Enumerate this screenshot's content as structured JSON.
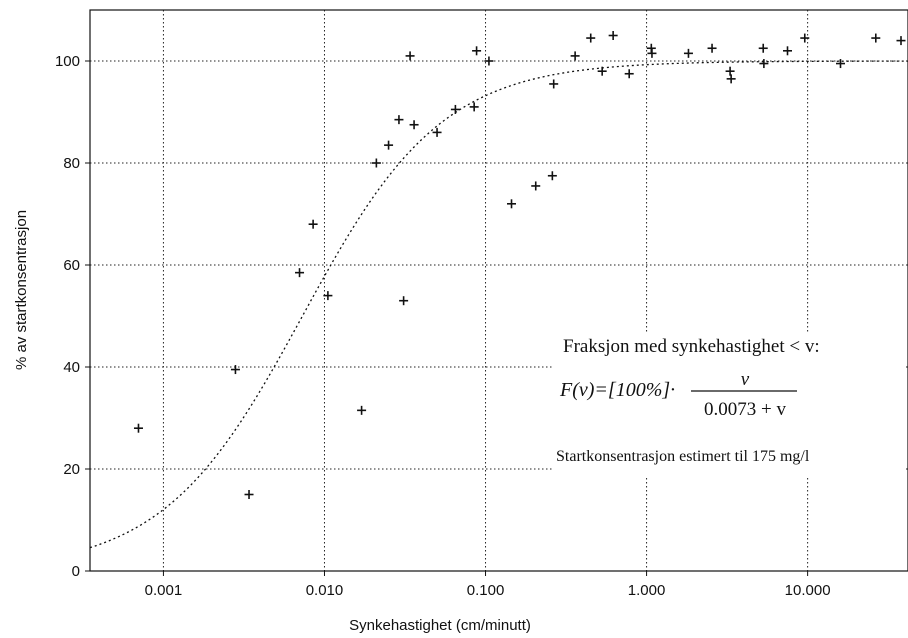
{
  "chart_data": {
    "type": "scatter",
    "xlabel": "Synkehastighet (cm/minutt)",
    "ylabel": "% av startkonsentrasjon",
    "x_scale": "log",
    "xlim": [
      0.00035,
      42
    ],
    "ylim": [
      0,
      110
    ],
    "x_ticks": [
      0.001,
      0.01,
      0.1,
      1,
      10
    ],
    "x_tick_labels": [
      "0.001",
      "0.010",
      "0.100",
      "1.000",
      "10.000"
    ],
    "y_ticks": [
      0,
      20,
      40,
      60,
      80,
      100
    ],
    "y_tick_labels": [
      "0",
      "20",
      "40",
      "60",
      "80",
      "100"
    ],
    "grid": true,
    "series": [
      {
        "marker": "plus",
        "points": [
          [
            0.0007,
            28
          ],
          [
            0.0028,
            39.5
          ],
          [
            0.0034,
            15
          ],
          [
            0.007,
            58.5
          ],
          [
            0.0085,
            68
          ],
          [
            0.0105,
            54
          ],
          [
            0.017,
            31.5
          ],
          [
            0.021,
            80
          ],
          [
            0.025,
            83.5
          ],
          [
            0.029,
            88.5
          ],
          [
            0.031,
            53
          ],
          [
            0.034,
            101
          ],
          [
            0.036,
            87.5
          ],
          [
            0.05,
            86
          ],
          [
            0.065,
            90.5
          ],
          [
            0.085,
            91
          ],
          [
            0.088,
            102
          ],
          [
            0.105,
            100
          ],
          [
            0.145,
            72
          ],
          [
            0.205,
            75.5
          ],
          [
            0.26,
            77.5
          ],
          [
            0.265,
            95.5
          ],
          [
            0.36,
            101
          ],
          [
            0.45,
            104.5
          ],
          [
            0.53,
            98
          ],
          [
            0.62,
            105
          ],
          [
            0.78,
            97.5
          ],
          [
            1.07,
            102.5
          ],
          [
            1.08,
            101.5
          ],
          [
            1.82,
            101.5
          ],
          [
            2.55,
            102.5
          ],
          [
            3.3,
            98
          ],
          [
            3.35,
            96.5
          ],
          [
            5.3,
            102.5
          ],
          [
            5.35,
            99.5
          ],
          [
            7.5,
            102
          ],
          [
            9.6,
            104.5
          ],
          [
            16,
            99.5
          ],
          [
            26.5,
            104.5
          ],
          [
            38,
            104
          ]
        ]
      },
      {
        "style": "dotted-fit",
        "fit": {
          "type": "hyperbolic",
          "max_percent": 100,
          "k": 0.0073
        }
      }
    ],
    "annotations": {
      "line1": "Fraksjon med synkehastighet  < v:",
      "formula_lhs": "F(v)=[100%]·",
      "formula_num": "v",
      "formula_den": "0.0073 + v",
      "line3": "Startkonsentrasjon estimert til 175 mg/l"
    }
  }
}
